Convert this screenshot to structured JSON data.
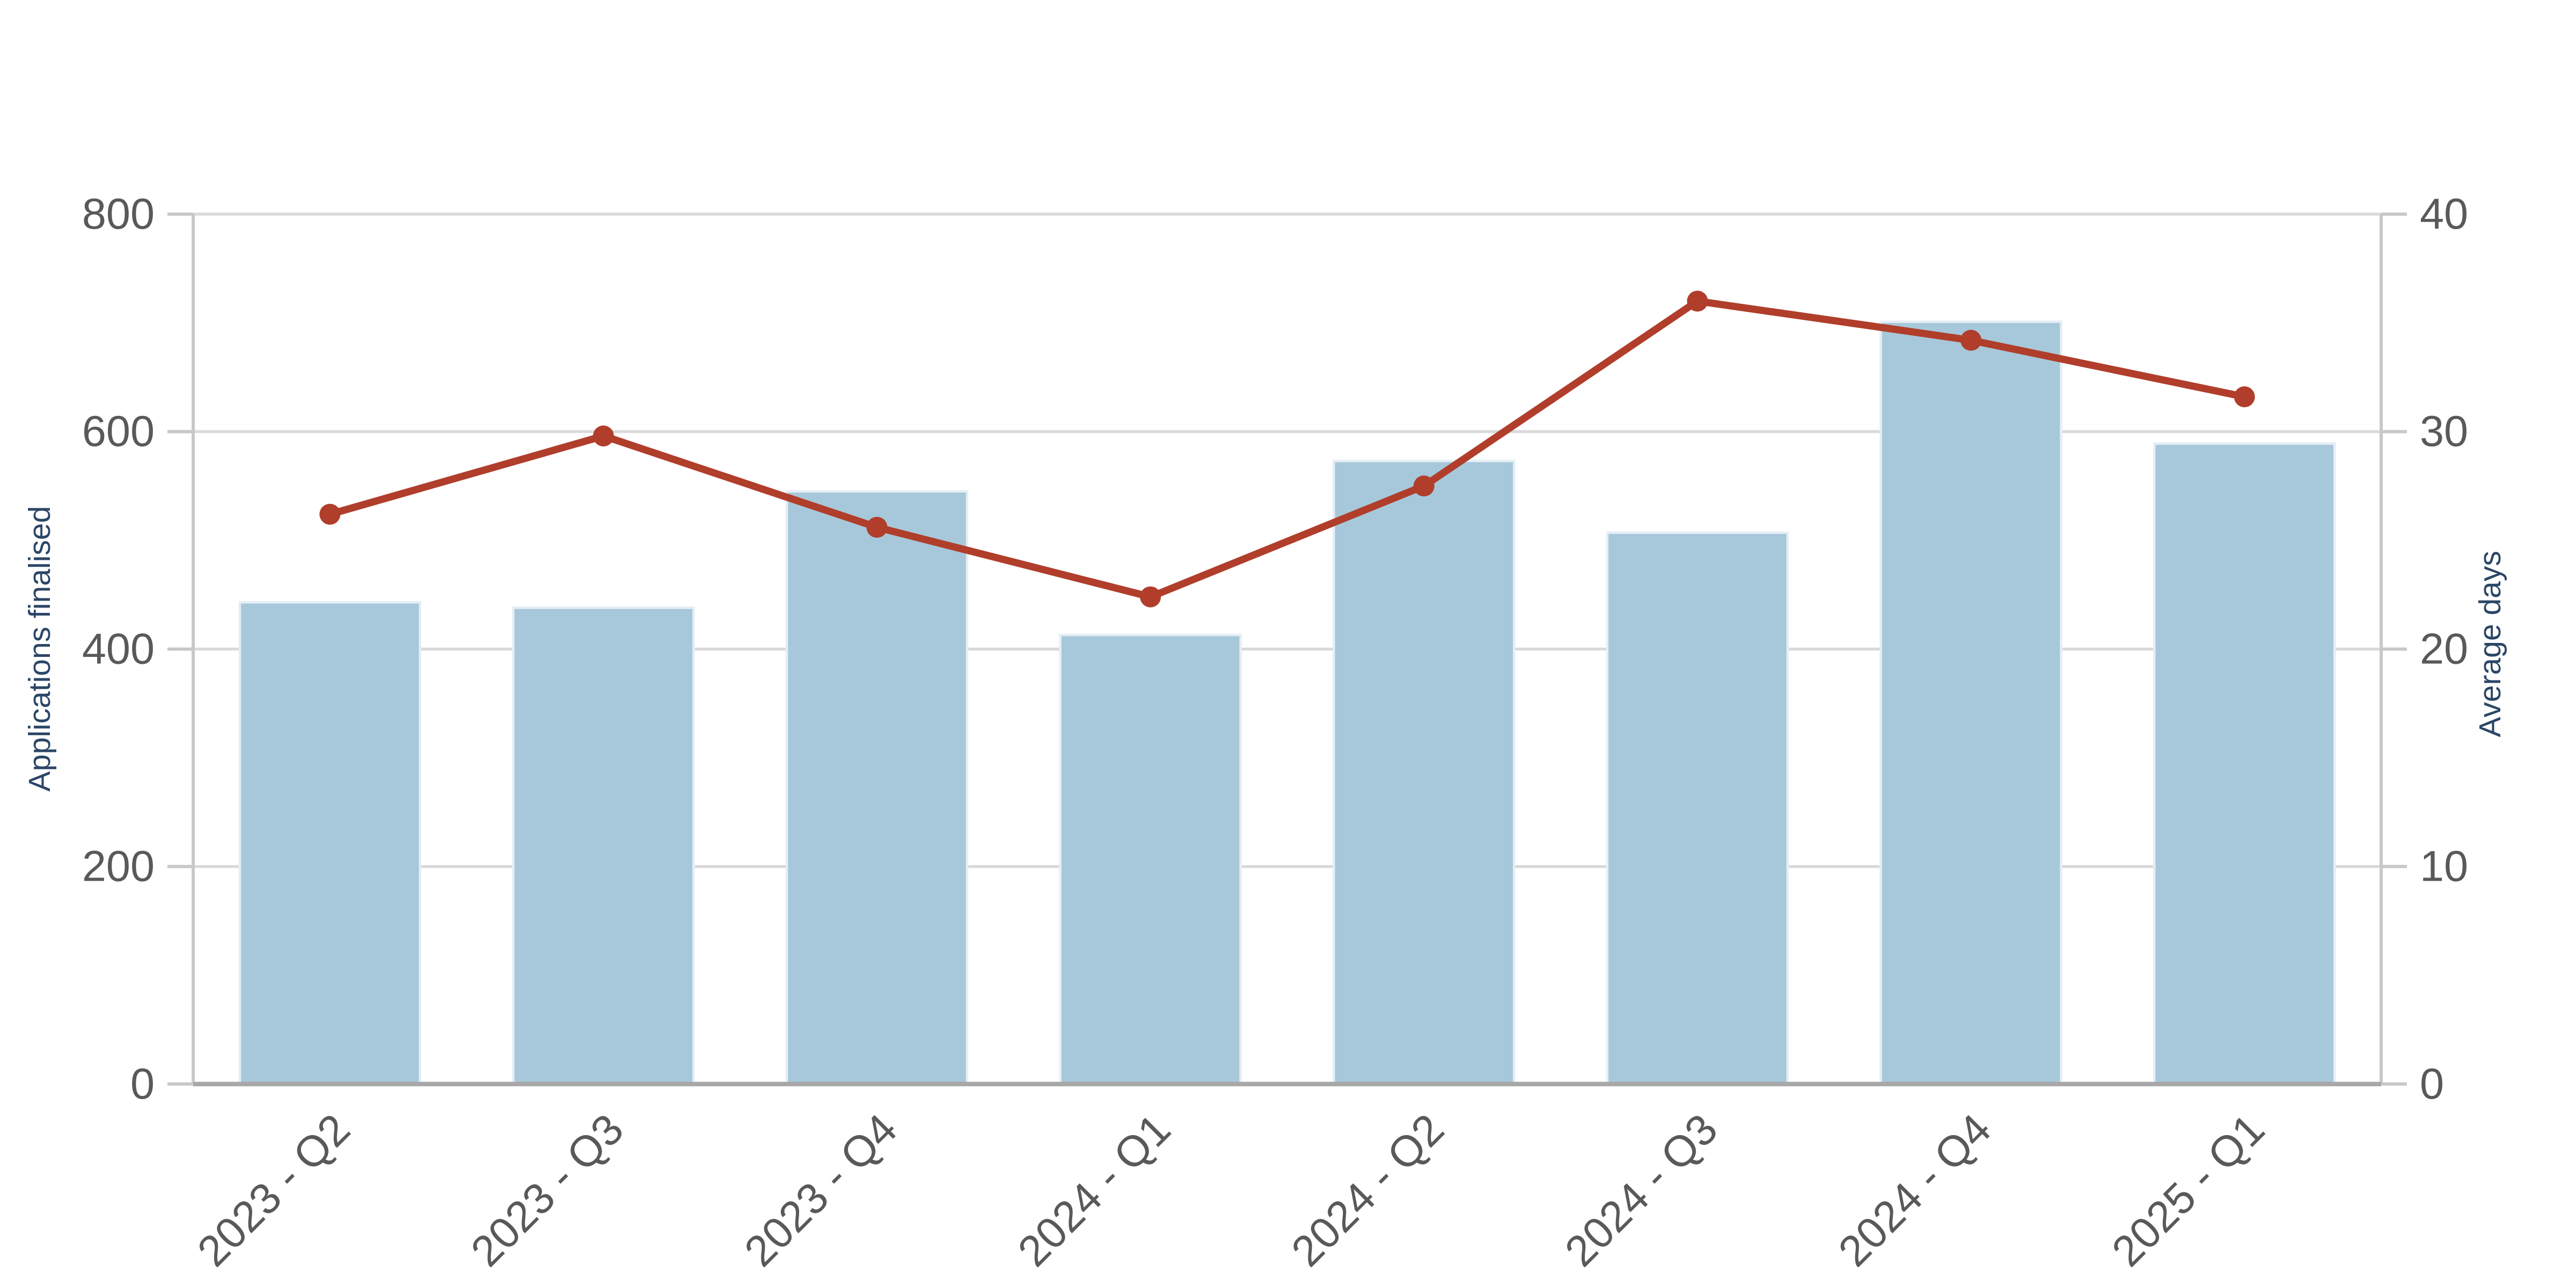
{
  "chart_data": {
    "type": "combo-bar-line-dual-axis",
    "categories": [
      "2023 - Q2",
      "2023 - Q3",
      "2023 - Q4",
      "2024 - Q1",
      "2024 - Q2",
      "2024 - Q3",
      "2024 - Q4",
      "2025 - Q1"
    ],
    "series": [
      {
        "name": "Applications finalised",
        "mark": "bar",
        "axis": "left",
        "color": "#a7c8da",
        "border_color": "#e6eef5",
        "values": [
          443,
          438,
          545,
          413,
          573,
          507,
          701,
          589
        ]
      },
      {
        "name": "Average days",
        "mark": "line",
        "axis": "right",
        "color": "#b03e2b",
        "marker": "circle",
        "values": [
          26.2,
          29.8,
          25.6,
          22.4,
          27.5,
          36.0,
          34.2,
          31.6
        ]
      }
    ],
    "left_axis": {
      "title": "Applications finalised",
      "min": 0,
      "max": 800,
      "ticks": [
        0,
        200,
        400,
        600,
        800
      ],
      "title_color": "#2b4666",
      "tick_label_color": "#595959"
    },
    "right_axis": {
      "title": "Average days",
      "min": 0,
      "max": 40,
      "ticks": [
        0,
        10,
        20,
        30,
        40
      ],
      "title_color": "#2b4666",
      "tick_label_color": "#595959"
    },
    "x_axis": {
      "label_rotation_deg": -45,
      "tick_label_color": "#595959"
    },
    "grid": {
      "show": true,
      "color": "#d9d9d9",
      "axis_line_color": "#c8c8c8",
      "baseline_color": "#a8a8a8"
    },
    "legend": "none",
    "background": "#ffffff"
  }
}
